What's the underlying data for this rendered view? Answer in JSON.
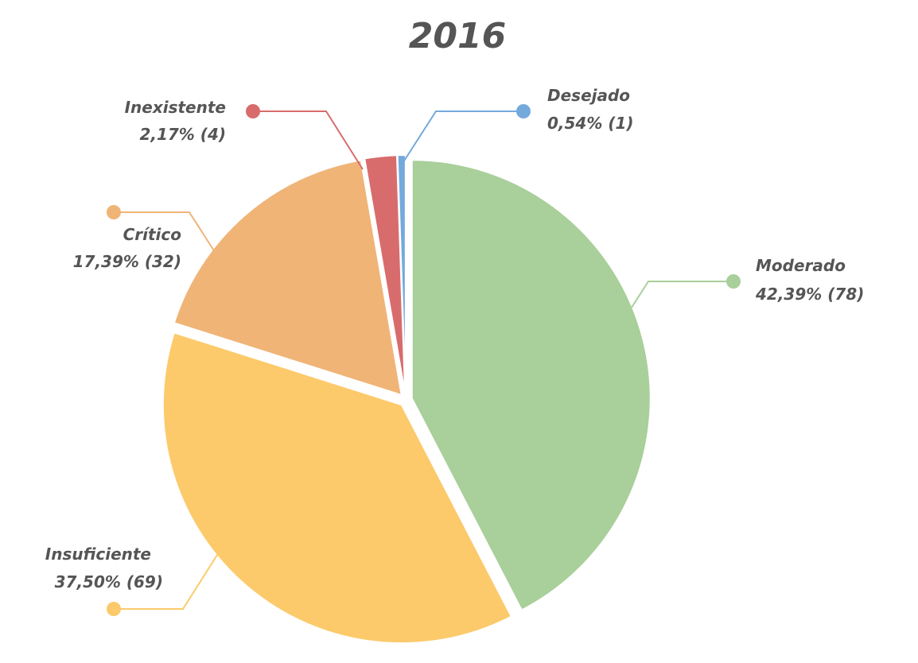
{
  "chart_data": {
    "type": "pie",
    "title": "2016",
    "slices": [
      {
        "name": "Moderado",
        "value": 78,
        "label": "42,39% (78)",
        "color": "#a9cf9a"
      },
      {
        "name": "Insuficiente",
        "value": 69,
        "label": "37,50% (69)",
        "color": "#fcca6b"
      },
      {
        "name": "Crítico",
        "value": 32,
        "label": "17,39% (32)",
        "color": "#f0b477"
      },
      {
        "name": "Inexistente",
        "value": 4,
        "label": "2,17% (4)",
        "color": "#d86c6c"
      },
      {
        "name": "Desejado",
        "value": 1,
        "label": "0,54% (1)",
        "color": "#74a9dc"
      }
    ],
    "legend": "none"
  }
}
